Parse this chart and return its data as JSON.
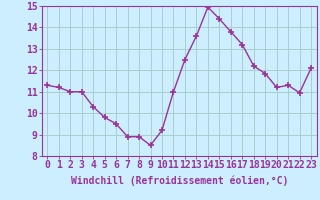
{
  "x": [
    0,
    1,
    2,
    3,
    4,
    5,
    6,
    7,
    8,
    9,
    10,
    11,
    12,
    13,
    14,
    15,
    16,
    17,
    18,
    19,
    20,
    21,
    22,
    23
  ],
  "y": [
    11.3,
    11.2,
    11.0,
    11.0,
    10.3,
    9.8,
    9.5,
    8.9,
    8.9,
    8.5,
    9.2,
    11.0,
    12.5,
    13.6,
    14.95,
    14.4,
    13.8,
    13.2,
    12.2,
    11.85,
    11.2,
    11.3,
    10.95,
    12.1
  ],
  "line_color": "#993399",
  "marker": "+",
  "marker_size": 5,
  "marker_linewidth": 1.2,
  "bg_color": "#cceeff",
  "grid_color": "#aacccc",
  "xlabel": "Windchill (Refroidissement éolien,°C)",
  "xlabel_fontsize": 7,
  "xtick_labels": [
    "0",
    "1",
    "2",
    "3",
    "4",
    "5",
    "6",
    "7",
    "8",
    "9",
    "10",
    "11",
    "12",
    "13",
    "14",
    "15",
    "16",
    "17",
    "18",
    "19",
    "20",
    "21",
    "22",
    "23"
  ],
  "ylim": [
    8,
    15
  ],
  "yticks": [
    8,
    9,
    10,
    11,
    12,
    13,
    14,
    15
  ],
  "tick_fontsize": 7,
  "axis_color": "#993399",
  "line_width": 1.0
}
